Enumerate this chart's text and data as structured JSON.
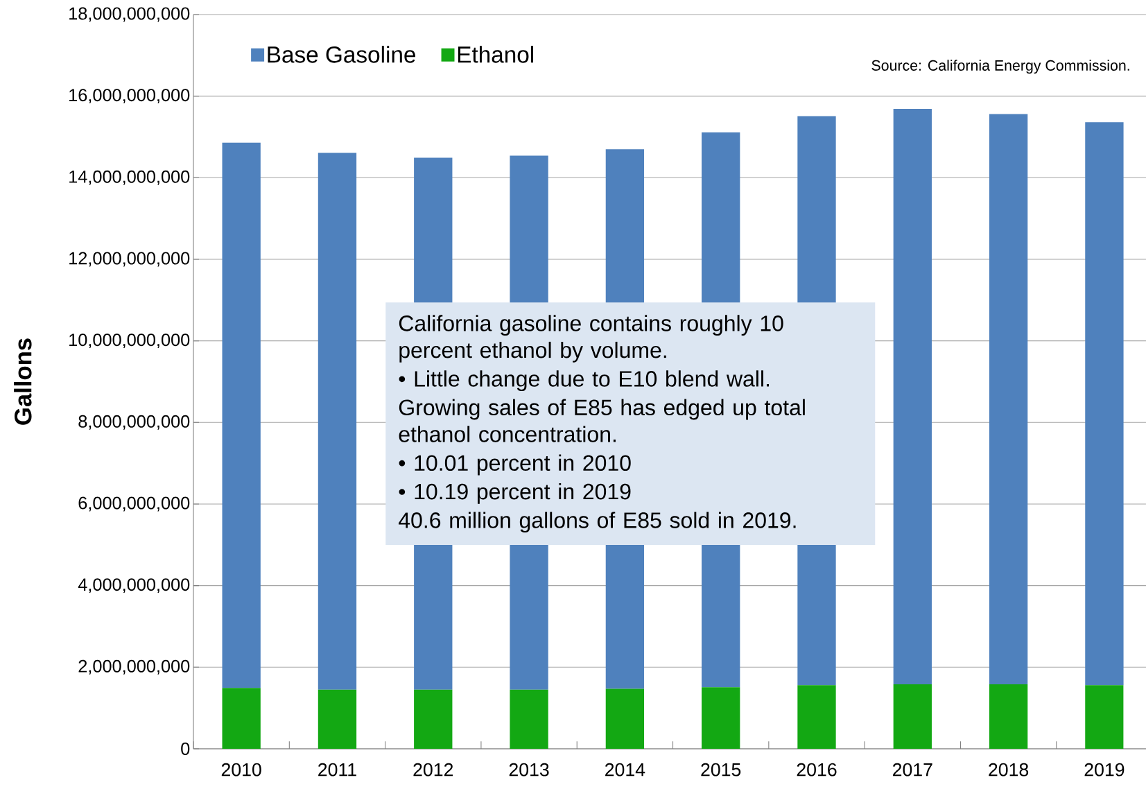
{
  "chart_data": {
    "type": "bar",
    "stacked": true,
    "ylabel": "Gallons",
    "categories": [
      "2010",
      "2011",
      "2012",
      "2013",
      "2014",
      "2015",
      "2016",
      "2017",
      "2018",
      "2019"
    ],
    "series": [
      {
        "name": "Ethanol",
        "color": "#13a813",
        "values": [
          1490000000,
          1450000000,
          1450000000,
          1450000000,
          1470000000,
          1510000000,
          1560000000,
          1580000000,
          1580000000,
          1560000000
        ]
      },
      {
        "name": "Base Gasoline",
        "color": "#4f81bd",
        "values": [
          13370000000,
          13160000000,
          13040000000,
          13090000000,
          13230000000,
          13600000000,
          13950000000,
          14110000000,
          13980000000,
          13800000000
        ]
      }
    ],
    "ylim": [
      0,
      18000000000
    ],
    "yticks": [
      {
        "value": 0,
        "label": "0"
      },
      {
        "value": 2000000000,
        "label": "2,000,000,000"
      },
      {
        "value": 4000000000,
        "label": "4,000,000,000"
      },
      {
        "value": 6000000000,
        "label": "6,000,000,000"
      },
      {
        "value": 8000000000,
        "label": "8,000,000,000"
      },
      {
        "value": 10000000000,
        "label": "10,000,000,000"
      },
      {
        "value": 12000000000,
        "label": "12,000,000,000"
      },
      {
        "value": 14000000000,
        "label": "14,000,000,000"
      },
      {
        "value": 16000000000,
        "label": "16,000,000,000"
      },
      {
        "value": 18000000000,
        "label": "18,000,000,000"
      }
    ],
    "grid": "y",
    "legend": "top left",
    "annotations": [
      "Source: California Energy Commission.",
      "California gasoline contains roughly 10 percent ethanol by volume.",
      "• Little change due to E10 blend wall.",
      "Growing sales of E85 has edged up total ethanol concentration.",
      "• 10.01 percent in 2010",
      "• 10.19 percent in 2019",
      "40.6 million gallons of E85 sold in 2019."
    ]
  }
}
